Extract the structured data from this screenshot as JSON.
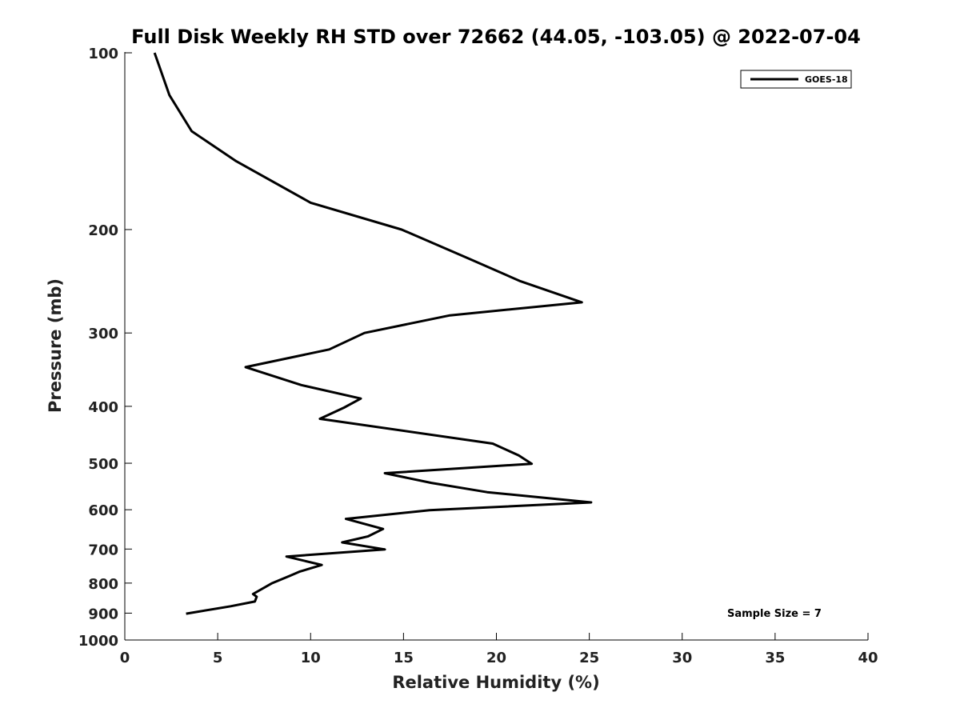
{
  "chart_data": {
    "type": "line",
    "title": "Full Disk Weekly RH STD over 72662 (44.05, -103.05) @ 2022-07-04",
    "xlabel": "Relative Humidity (%)",
    "ylabel": "Pressure (mb)",
    "xlim": [
      0,
      40
    ],
    "ylim": [
      100,
      1000
    ],
    "y_scale": "log",
    "y_inverted": true,
    "x_ticks": [
      "0",
      "5",
      "10",
      "15",
      "20",
      "25",
      "30",
      "35",
      "40"
    ],
    "y_ticks": [
      "100",
      "200",
      "300",
      "400",
      "500",
      "600",
      "700",
      "800",
      "900",
      "1000"
    ],
    "grid": false,
    "legend_position": "top-right",
    "series": [
      {
        "name": "GOES-18",
        "color": "#000000",
        "points": [
          {
            "x": 1.6,
            "y": 100
          },
          {
            "x": 2.4,
            "y": 118
          },
          {
            "x": 3.6,
            "y": 136
          },
          {
            "x": 6.0,
            "y": 153
          },
          {
            "x": 10.0,
            "y": 180
          },
          {
            "x": 14.9,
            "y": 200
          },
          {
            "x": 18.5,
            "y": 224
          },
          {
            "x": 21.3,
            "y": 245
          },
          {
            "x": 24.6,
            "y": 266
          },
          {
            "x": 17.5,
            "y": 280
          },
          {
            "x": 12.9,
            "y": 300
          },
          {
            "x": 11.0,
            "y": 320
          },
          {
            "x": 6.5,
            "y": 343
          },
          {
            "x": 9.5,
            "y": 368
          },
          {
            "x": 12.7,
            "y": 388
          },
          {
            "x": 11.8,
            "y": 402
          },
          {
            "x": 10.5,
            "y": 420
          },
          {
            "x": 19.8,
            "y": 463
          },
          {
            "x": 21.2,
            "y": 485
          },
          {
            "x": 21.9,
            "y": 501
          },
          {
            "x": 14.0,
            "y": 520
          },
          {
            "x": 16.5,
            "y": 540
          },
          {
            "x": 19.5,
            "y": 560
          },
          {
            "x": 25.1,
            "y": 583
          },
          {
            "x": 16.4,
            "y": 601
          },
          {
            "x": 11.9,
            "y": 622
          },
          {
            "x": 13.9,
            "y": 647
          },
          {
            "x": 13.1,
            "y": 666
          },
          {
            "x": 11.7,
            "y": 682
          },
          {
            "x": 14.0,
            "y": 701
          },
          {
            "x": 8.7,
            "y": 721
          },
          {
            "x": 10.6,
            "y": 745
          },
          {
            "x": 9.4,
            "y": 765
          },
          {
            "x": 8.9,
            "y": 777
          },
          {
            "x": 7.9,
            "y": 801
          },
          {
            "x": 6.9,
            "y": 835
          },
          {
            "x": 7.1,
            "y": 844
          },
          {
            "x": 7.0,
            "y": 860
          },
          {
            "x": 5.7,
            "y": 876
          },
          {
            "x": 3.3,
            "y": 902
          }
        ]
      }
    ],
    "annotation": "Sample Size = 7"
  }
}
